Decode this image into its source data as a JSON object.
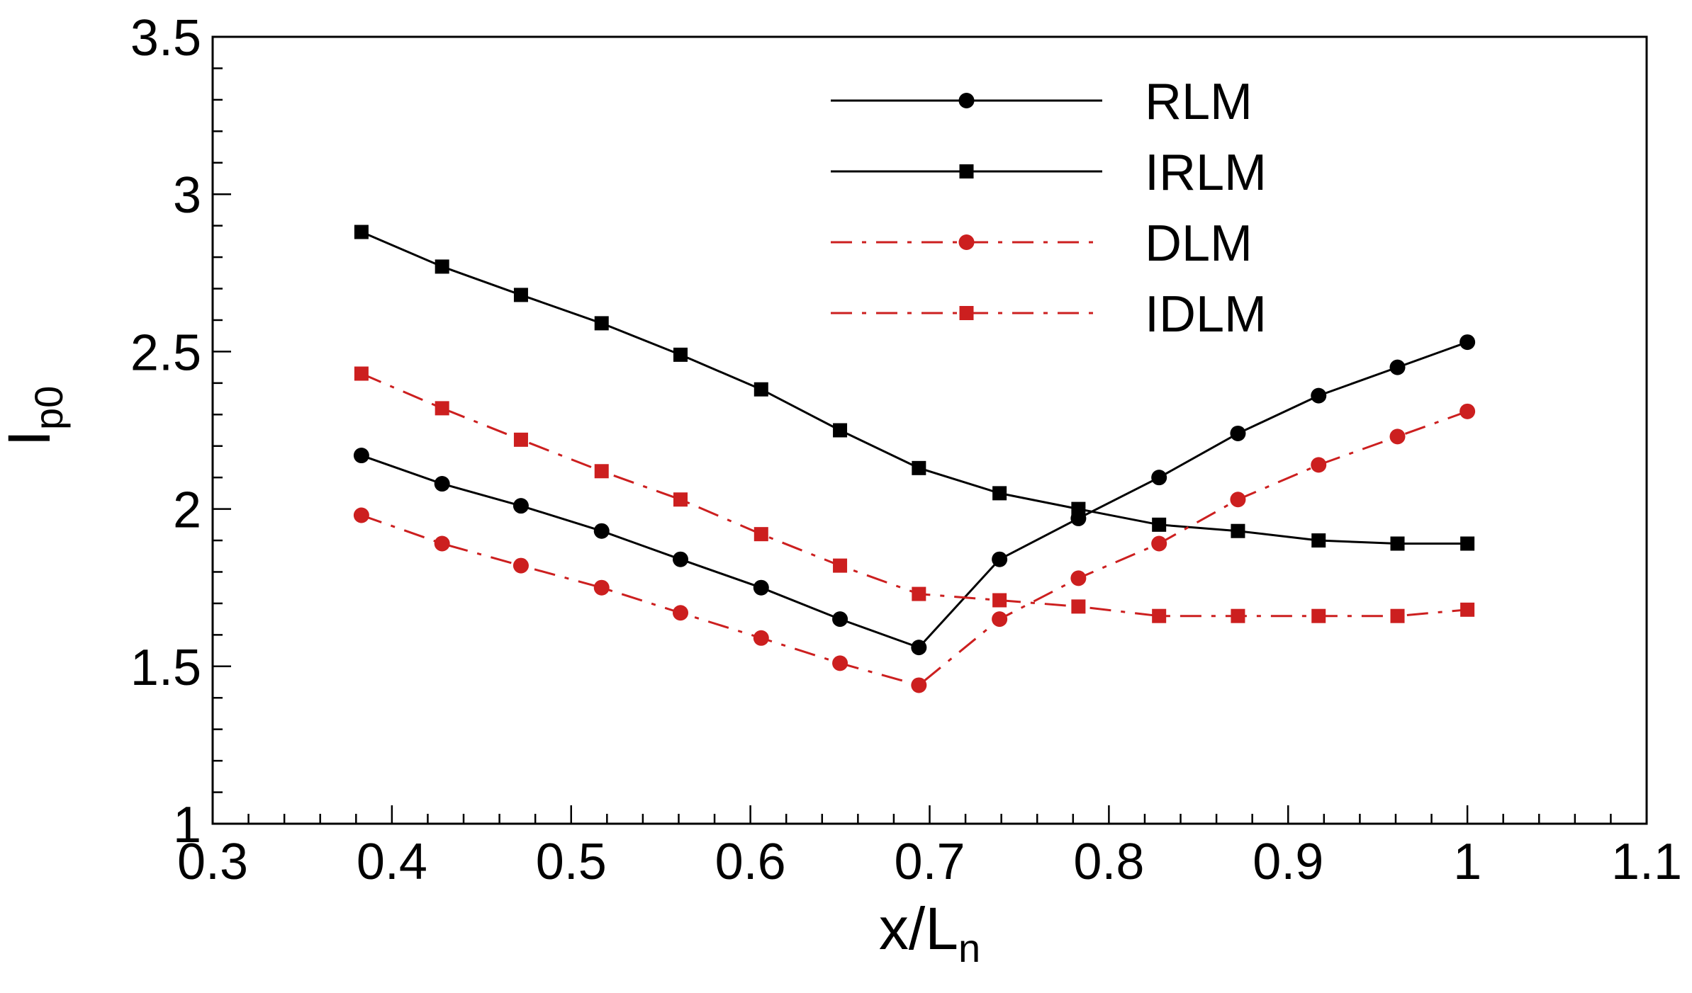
{
  "chart_data": {
    "type": "line",
    "title": "",
    "xlabel": {
      "main": "x/L",
      "sub": "n"
    },
    "ylabel": {
      "main": "I",
      "sub": "p0"
    },
    "xlim": [
      0.3,
      1.1
    ],
    "ylim": [
      1,
      3.5
    ],
    "xticks": [
      0.3,
      0.4,
      0.5,
      0.6,
      0.7,
      0.8,
      0.9,
      1.0,
      1.1
    ],
    "xtick_labels": [
      "0.3",
      "0.4",
      "0.5",
      "0.6",
      "0.7",
      "0.8",
      "0.9",
      "1",
      "1.1"
    ],
    "yticks": [
      1,
      1.5,
      2,
      2.5,
      3,
      3.5
    ],
    "ytick_labels": [
      "1",
      "1.5",
      "2",
      "2.5",
      "3",
      "3.5"
    ],
    "legend_position": "top-right",
    "x": [
      0.383,
      0.428,
      0.472,
      0.517,
      0.561,
      0.606,
      0.65,
      0.694,
      0.739,
      0.783,
      0.828,
      0.872,
      0.917,
      0.961,
      1.0
    ],
    "series": [
      {
        "name": "RLM",
        "color": "#000000",
        "marker": "circle",
        "dash": "solid",
        "values": [
          2.17,
          2.08,
          2.01,
          1.93,
          1.84,
          1.75,
          1.65,
          1.56,
          1.84,
          1.97,
          2.1,
          2.24,
          2.36,
          2.45,
          2.53
        ]
      },
      {
        "name": "IRLM",
        "color": "#000000",
        "marker": "square",
        "dash": "solid",
        "values": [
          2.88,
          2.77,
          2.68,
          2.59,
          2.49,
          2.38,
          2.25,
          2.13,
          2.05,
          2.0,
          1.95,
          1.93,
          1.9,
          1.89,
          1.89
        ]
      },
      {
        "name": "DLM",
        "color": "#cc1f1f",
        "marker": "circle",
        "dash": "dashdot",
        "values": [
          1.98,
          1.89,
          1.82,
          1.75,
          1.67,
          1.59,
          1.51,
          1.44,
          1.65,
          1.78,
          1.89,
          2.03,
          2.14,
          2.23,
          2.31
        ]
      },
      {
        "name": "IDLM",
        "color": "#cc1f1f",
        "marker": "square",
        "dash": "dashdot",
        "values": [
          2.43,
          2.32,
          2.22,
          2.12,
          2.03,
          1.92,
          1.82,
          1.73,
          1.71,
          1.69,
          1.66,
          1.66,
          1.66,
          1.66,
          1.68
        ]
      }
    ]
  }
}
